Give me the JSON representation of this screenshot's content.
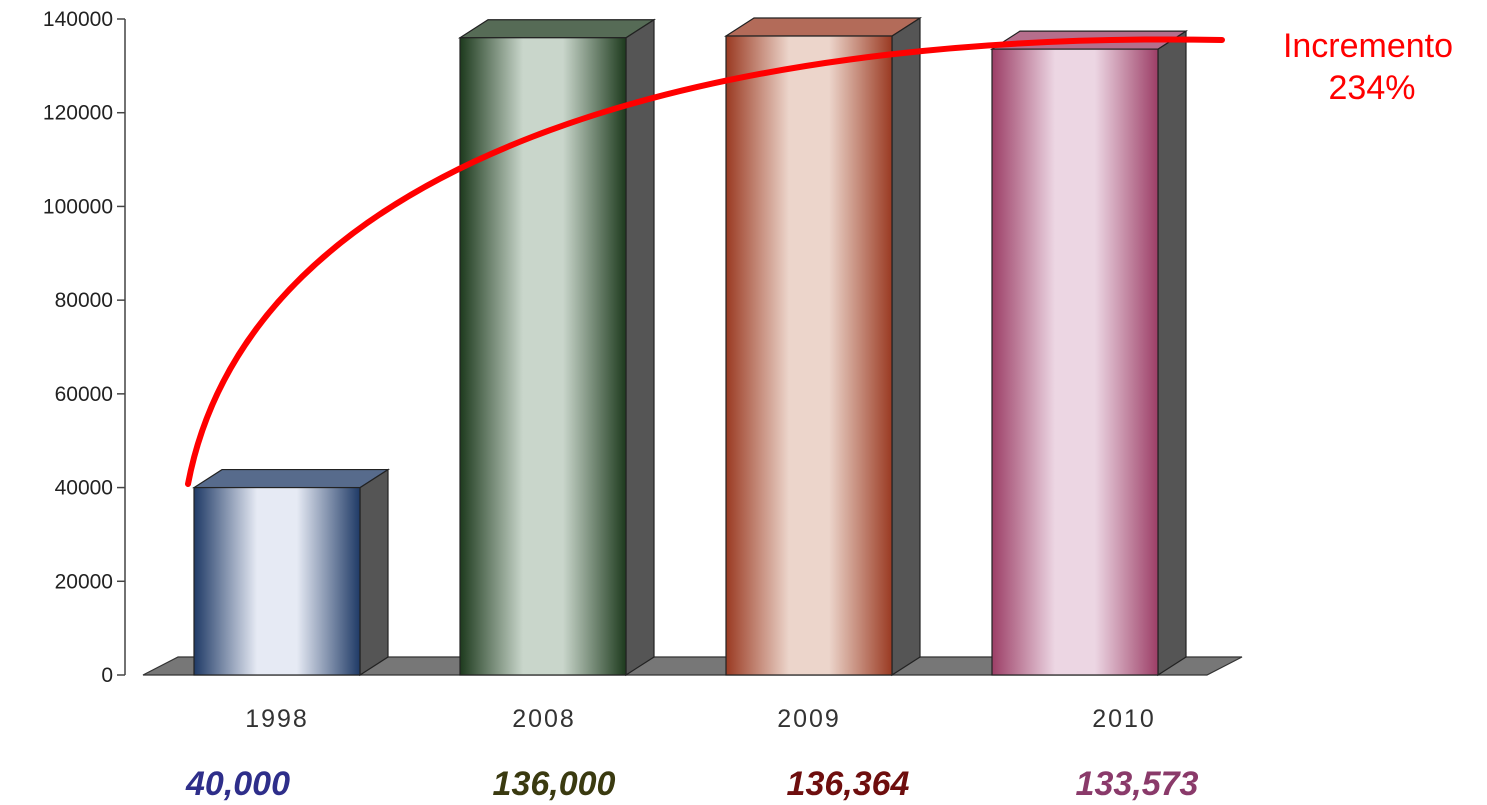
{
  "chart_data": {
    "type": "bar",
    "categories": [
      "1998",
      "2008",
      "2009",
      "2010"
    ],
    "values": [
      40000,
      136000,
      136364,
      133573
    ],
    "value_labels": [
      "40,000",
      "136,000",
      "136,364",
      "133,573"
    ],
    "yticks": [
      "0",
      "20000",
      "40000",
      "60000",
      "80000",
      "100000",
      "120000",
      "140000"
    ],
    "ylim": [
      0,
      140000
    ],
    "colors": {
      "bars": [
        {
          "edge": "#1f3a66",
          "light": "#e6eaf4"
        },
        {
          "edge": "#1d3a1d",
          "light": "#c9d6cb"
        },
        {
          "edge": "#9a3a22",
          "light": "#ecd5cb"
        },
        {
          "edge": "#9c3e66",
          "light": "#ecd6e3"
        }
      ],
      "value_labels": [
        "#2e2e8a",
        "#3a3a10",
        "#6e0e0e",
        "#8a3a6a"
      ],
      "trend": "#ff0000"
    },
    "annotation": {
      "line1": "Incremento",
      "line2": "234%"
    },
    "grid": false,
    "legend": "none"
  }
}
